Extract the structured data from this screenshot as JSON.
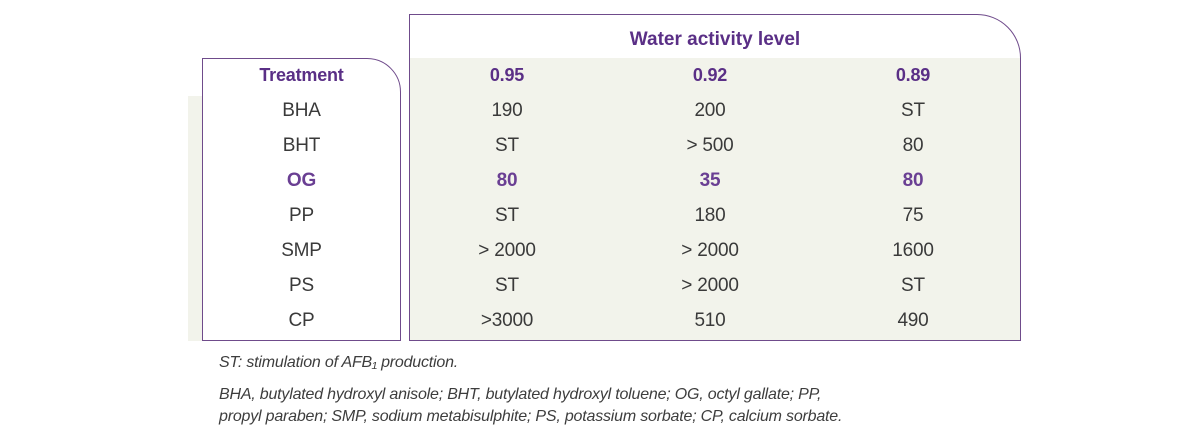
{
  "table": {
    "group_header": "Water activity level",
    "columns": [
      "Treatment",
      "0.95",
      "0.92",
      "0.89"
    ],
    "rows": [
      {
        "treatment": "BHA",
        "values": [
          "190",
          "200",
          "ST"
        ],
        "highlight": false
      },
      {
        "treatment": "BHT",
        "values": [
          "ST",
          "> 500",
          "80"
        ],
        "highlight": false
      },
      {
        "treatment": "OG",
        "values": [
          "80",
          "35",
          "80"
        ],
        "highlight": true
      },
      {
        "treatment": "PP",
        "values": [
          "ST",
          "180",
          "75"
        ],
        "highlight": false
      },
      {
        "treatment": "SMP",
        "values": [
          "> 2000",
          "> 2000",
          "1600"
        ],
        "highlight": false
      },
      {
        "treatment": "PS",
        "values": [
          "ST",
          "> 2000",
          "ST"
        ],
        "highlight": false
      },
      {
        "treatment": "CP",
        "values": [
          ">3000",
          "510",
          "490"
        ],
        "highlight": false
      }
    ]
  },
  "notes": {
    "stimulation": "ST: stimulation of AFB₁ production.",
    "abbreviations": "BHA, butylated hydroxyl anisole; BHT, butylated hydroxyl toluene; OG, octyl gallate; PP, propyl paraben; SMP, sodium metabisulphite; PS, potassium sorbate; CP, calcium sorbate."
  },
  "colors": {
    "accent": "#5a2f86",
    "frame": "#6f4b8b",
    "band": "#f2f3eb"
  }
}
